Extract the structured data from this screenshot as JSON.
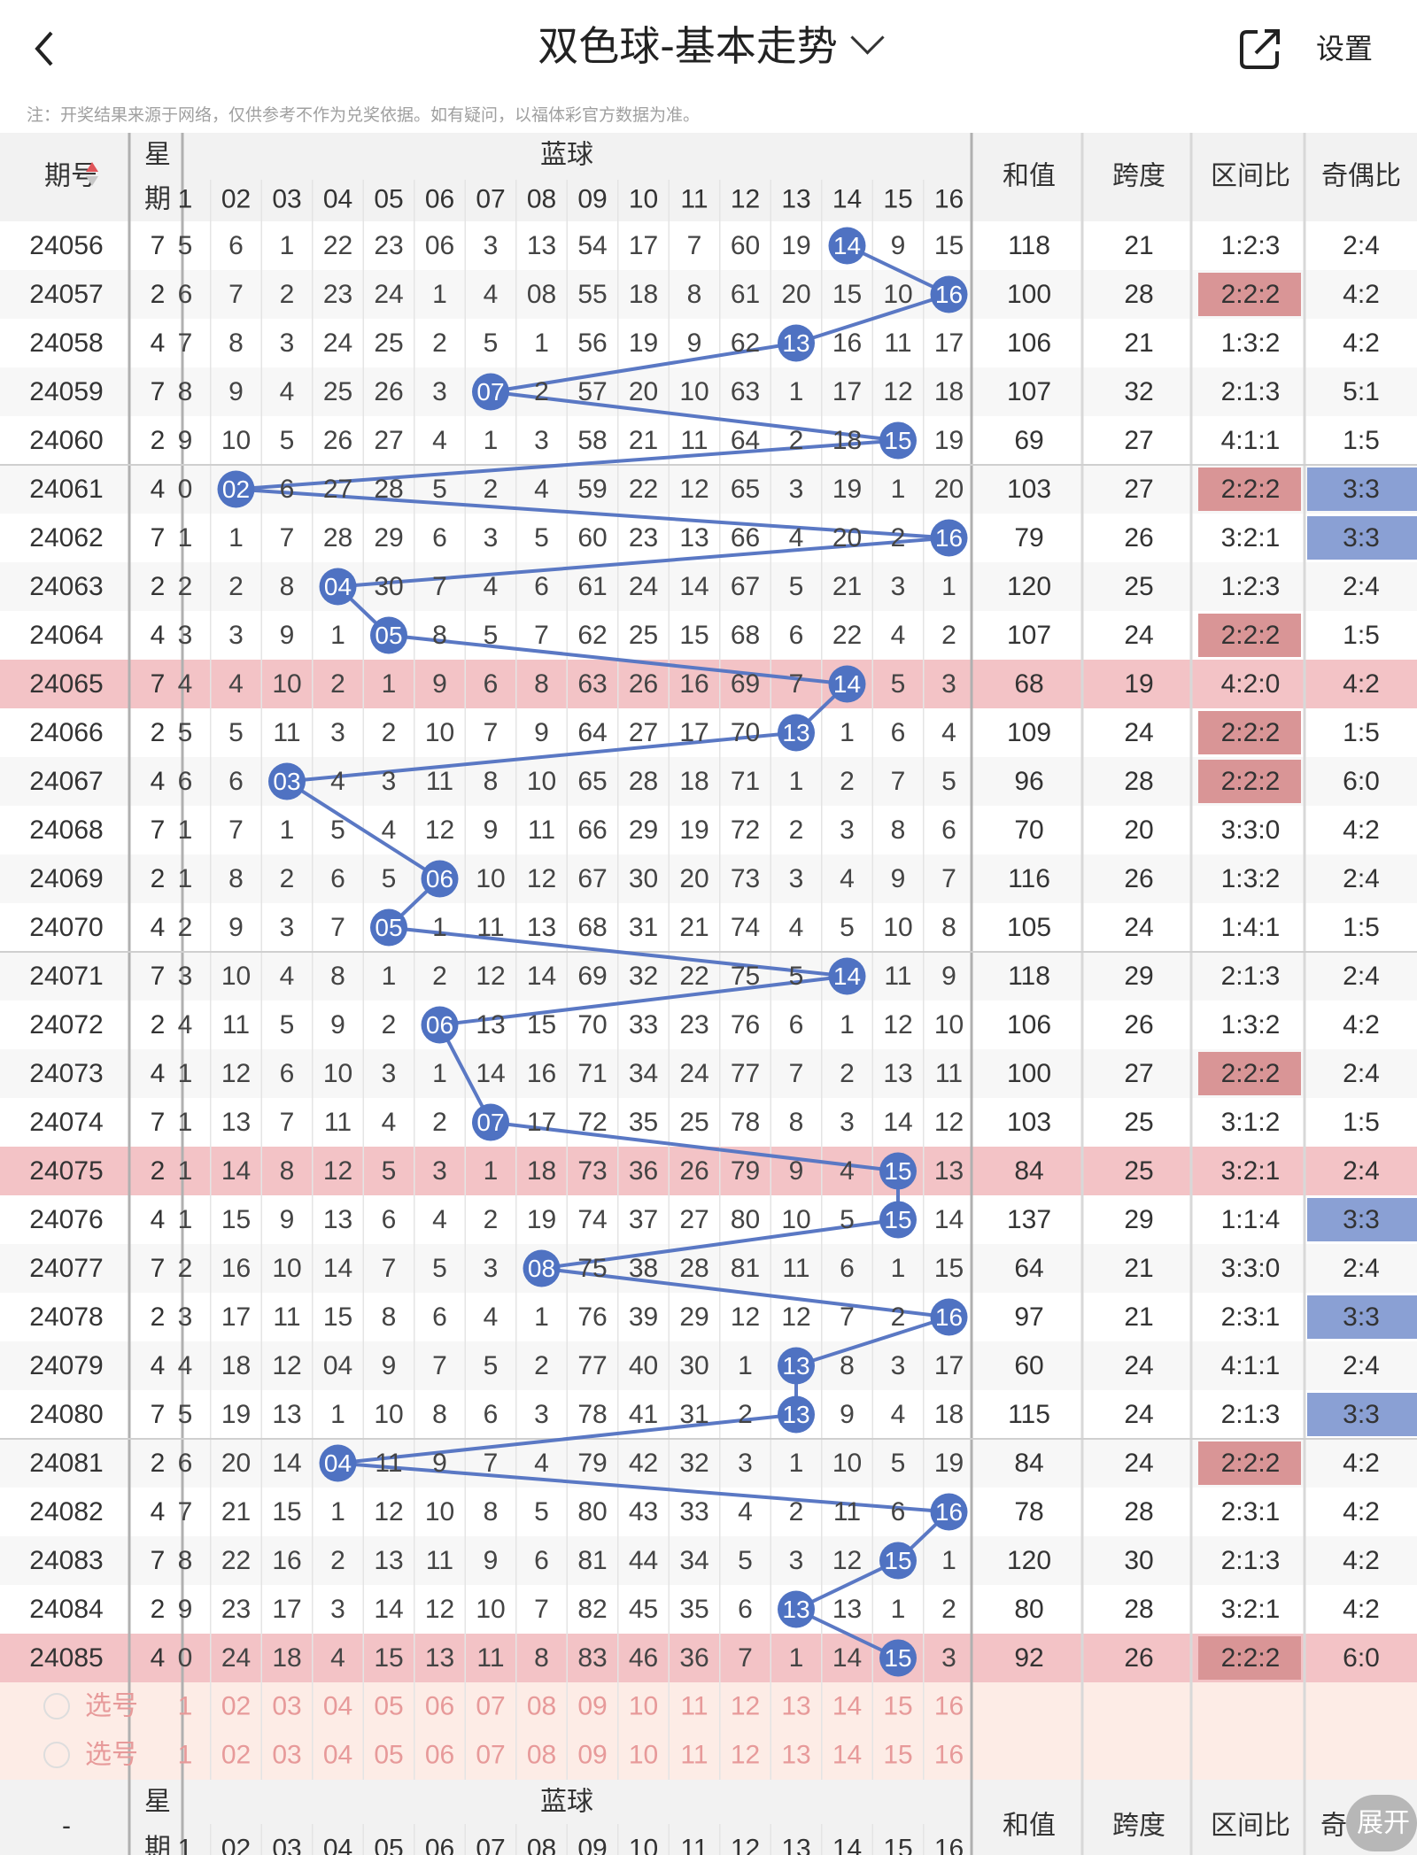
{
  "header": {
    "title": "双色球-基本走势",
    "settings_label": "设置"
  },
  "note": "注：开奖结果来源于网络，仅供参考不作为兑奖依据。如有疑问，以福体彩官方数据为准。",
  "columns": {
    "issue": "期号",
    "week_top": "星",
    "week_bottom": "期",
    "blue_group": "蓝球",
    "sum": "和值",
    "span": "跨度",
    "zone_ratio": "区间比",
    "odd_even": "奇偶比"
  },
  "blue_numbers": [
    "1",
    "02",
    "03",
    "04",
    "05",
    "06",
    "07",
    "08",
    "09",
    "10",
    "11",
    "12",
    "13",
    "14",
    "15",
    "16"
  ],
  "colors": {
    "line": "#5a78c4",
    "ball": "#4f72c2",
    "highlight_row": "#f3c3c6",
    "zone_highlight": "#d99596",
    "oe_highlight": "#8aa0d4",
    "select_text": "#e79a9a",
    "select_bg": "#fdece6",
    "header_bg": "#f2f2f2",
    "alt_row": "#f7f7f7"
  },
  "rows": [
    {
      "issue": "24056",
      "week": "7",
      "cells": [
        "5",
        "6",
        "1",
        "22",
        "23",
        "06",
        "3",
        "13",
        "54",
        "17",
        "7",
        "60",
        "19",
        "14",
        "9",
        "15"
      ],
      "sum": "118",
      "span": "21",
      "zone": "1:2:3",
      "oe": "2:4"
    },
    {
      "issue": "24057",
      "week": "2",
      "cells": [
        "6",
        "7",
        "2",
        "23",
        "24",
        "1",
        "4",
        "08",
        "55",
        "18",
        "8",
        "61",
        "20",
        "15",
        "10",
        "16"
      ],
      "sum": "100",
      "span": "28",
      "zone": "2:2:2",
      "oe": "4:2"
    },
    {
      "issue": "24058",
      "week": "4",
      "cells": [
        "7",
        "8",
        "3",
        "24",
        "25",
        "2",
        "5",
        "1",
        "56",
        "19",
        "9",
        "62",
        "13",
        "16",
        "11",
        "17"
      ],
      "sum": "106",
      "span": "21",
      "zone": "1:3:2",
      "oe": "4:2"
    },
    {
      "issue": "24059",
      "week": "7",
      "cells": [
        "8",
        "9",
        "4",
        "25",
        "26",
        "3",
        "07",
        "2",
        "57",
        "20",
        "10",
        "63",
        "1",
        "17",
        "12",
        "18"
      ],
      "sum": "107",
      "span": "32",
      "zone": "2:1:3",
      "oe": "5:1"
    },
    {
      "issue": "24060",
      "week": "2",
      "cells": [
        "9",
        "10",
        "5",
        "26",
        "27",
        "4",
        "1",
        "3",
        "58",
        "21",
        "11",
        "64",
        "2",
        "18",
        "15",
        "19"
      ],
      "sum": "69",
      "span": "27",
      "zone": "4:1:1",
      "oe": "1:5"
    },
    {
      "issue": "24061",
      "week": "4",
      "cells": [
        "0",
        "02",
        "6",
        "27",
        "28",
        "5",
        "2",
        "4",
        "59",
        "22",
        "12",
        "65",
        "3",
        "19",
        "1",
        "20"
      ],
      "sum": "103",
      "span": "27",
      "zone": "2:2:2",
      "oe": "3:3"
    },
    {
      "issue": "24062",
      "week": "7",
      "cells": [
        "1",
        "1",
        "7",
        "28",
        "29",
        "6",
        "3",
        "5",
        "60",
        "23",
        "13",
        "66",
        "4",
        "20",
        "2",
        "16"
      ],
      "sum": "79",
      "span": "26",
      "zone": "3:2:1",
      "oe": "3:3"
    },
    {
      "issue": "24063",
      "week": "2",
      "cells": [
        "2",
        "2",
        "8",
        "04",
        "30",
        "7",
        "4",
        "6",
        "61",
        "24",
        "14",
        "67",
        "5",
        "21",
        "3",
        "1"
      ],
      "sum": "120",
      "span": "25",
      "zone": "1:2:3",
      "oe": "2:4"
    },
    {
      "issue": "24064",
      "week": "4",
      "cells": [
        "3",
        "3",
        "9",
        "1",
        "05",
        "8",
        "5",
        "7",
        "62",
        "25",
        "15",
        "68",
        "6",
        "22",
        "4",
        "2"
      ],
      "sum": "107",
      "span": "24",
      "zone": "2:2:2",
      "oe": "1:5"
    },
    {
      "issue": "24065",
      "week": "7",
      "cells": [
        "4",
        "4",
        "10",
        "2",
        "1",
        "9",
        "6",
        "8",
        "63",
        "26",
        "16",
        "69",
        "7",
        "14",
        "5",
        "3"
      ],
      "sum": "68",
      "span": "19",
      "zone": "4:2:0",
      "oe": "4:2"
    },
    {
      "issue": "24066",
      "week": "2",
      "cells": [
        "5",
        "5",
        "11",
        "3",
        "2",
        "10",
        "7",
        "9",
        "64",
        "27",
        "17",
        "70",
        "13",
        "1",
        "6",
        "4"
      ],
      "sum": "109",
      "span": "24",
      "zone": "2:2:2",
      "oe": "1:5"
    },
    {
      "issue": "24067",
      "week": "4",
      "cells": [
        "6",
        "6",
        "03",
        "4",
        "3",
        "11",
        "8",
        "10",
        "65",
        "28",
        "18",
        "71",
        "1",
        "2",
        "7",
        "5"
      ],
      "sum": "96",
      "span": "28",
      "zone": "2:2:2",
      "oe": "6:0"
    },
    {
      "issue": "24068",
      "week": "7",
      "cells": [
        "1",
        "7",
        "1",
        "5",
        "4",
        "12",
        "9",
        "11",
        "66",
        "29",
        "19",
        "72",
        "2",
        "3",
        "8",
        "6"
      ],
      "sum": "70",
      "span": "20",
      "zone": "3:3:0",
      "oe": "4:2"
    },
    {
      "issue": "24069",
      "week": "2",
      "cells": [
        "1",
        "8",
        "2",
        "6",
        "5",
        "06",
        "10",
        "12",
        "67",
        "30",
        "20",
        "73",
        "3",
        "4",
        "9",
        "7"
      ],
      "sum": "116",
      "span": "26",
      "zone": "1:3:2",
      "oe": "2:4"
    },
    {
      "issue": "24070",
      "week": "4",
      "cells": [
        "2",
        "9",
        "3",
        "7",
        "05",
        "1",
        "11",
        "13",
        "68",
        "31",
        "21",
        "74",
        "4",
        "5",
        "10",
        "8"
      ],
      "sum": "105",
      "span": "24",
      "zone": "1:4:1",
      "oe": "1:5"
    },
    {
      "issue": "24071",
      "week": "7",
      "cells": [
        "3",
        "10",
        "4",
        "8",
        "1",
        "2",
        "12",
        "14",
        "69",
        "32",
        "22",
        "75",
        "5",
        "14",
        "11",
        "9"
      ],
      "sum": "118",
      "span": "29",
      "zone": "2:1:3",
      "oe": "2:4"
    },
    {
      "issue": "24072",
      "week": "2",
      "cells": [
        "4",
        "11",
        "5",
        "9",
        "2",
        "06",
        "13",
        "15",
        "70",
        "33",
        "23",
        "76",
        "6",
        "1",
        "12",
        "10"
      ],
      "sum": "106",
      "span": "26",
      "zone": "1:3:2",
      "oe": "4:2"
    },
    {
      "issue": "24073",
      "week": "4",
      "cells": [
        "1",
        "12",
        "6",
        "10",
        "3",
        "1",
        "14",
        "16",
        "71",
        "34",
        "24",
        "77",
        "7",
        "2",
        "13",
        "11"
      ],
      "sum": "100",
      "span": "27",
      "zone": "2:2:2",
      "oe": "2:4"
    },
    {
      "issue": "24074",
      "week": "7",
      "cells": [
        "1",
        "13",
        "7",
        "11",
        "4",
        "2",
        "07",
        "17",
        "72",
        "35",
        "25",
        "78",
        "8",
        "3",
        "14",
        "12"
      ],
      "sum": "103",
      "span": "25",
      "zone": "3:1:2",
      "oe": "1:5"
    },
    {
      "issue": "24075",
      "week": "2",
      "cells": [
        "1",
        "14",
        "8",
        "12",
        "5",
        "3",
        "1",
        "18",
        "73",
        "36",
        "26",
        "79",
        "9",
        "4",
        "15",
        "13"
      ],
      "sum": "84",
      "span": "25",
      "zone": "3:2:1",
      "oe": "2:4"
    },
    {
      "issue": "24076",
      "week": "4",
      "cells": [
        "1",
        "15",
        "9",
        "13",
        "6",
        "4",
        "2",
        "19",
        "74",
        "37",
        "27",
        "80",
        "10",
        "5",
        "15",
        "14"
      ],
      "sum": "137",
      "span": "29",
      "zone": "1:1:4",
      "oe": "3:3"
    },
    {
      "issue": "24077",
      "week": "7",
      "cells": [
        "2",
        "16",
        "10",
        "14",
        "7",
        "5",
        "3",
        "08",
        "75",
        "38",
        "28",
        "81",
        "11",
        "6",
        "1",
        "15"
      ],
      "sum": "64",
      "span": "21",
      "zone": "3:3:0",
      "oe": "2:4"
    },
    {
      "issue": "24078",
      "week": "2",
      "cells": [
        "3",
        "17",
        "11",
        "15",
        "8",
        "6",
        "4",
        "1",
        "76",
        "39",
        "29",
        "12",
        "12",
        "7",
        "2",
        "16"
      ],
      "sum": "97",
      "span": "21",
      "zone": "2:3:1",
      "oe": "3:3"
    },
    {
      "issue": "24079",
      "week": "4",
      "cells": [
        "4",
        "18",
        "12",
        "04",
        "9",
        "7",
        "5",
        "2",
        "77",
        "40",
        "30",
        "1",
        "13",
        "8",
        "3",
        "17"
      ],
      "sum": "60",
      "span": "24",
      "zone": "4:1:1",
      "oe": "2:4"
    },
    {
      "issue": "24080",
      "week": "7",
      "cells": [
        "5",
        "19",
        "13",
        "1",
        "10",
        "8",
        "6",
        "3",
        "78",
        "41",
        "31",
        "2",
        "13",
        "9",
        "4",
        "18"
      ],
      "sum": "115",
      "span": "24",
      "zone": "2:1:3",
      "oe": "3:3"
    },
    {
      "issue": "24081",
      "week": "2",
      "cells": [
        "6",
        "20",
        "14",
        "04",
        "11",
        "9",
        "7",
        "4",
        "79",
        "42",
        "32",
        "3",
        "1",
        "10",
        "5",
        "19"
      ],
      "sum": "84",
      "span": "24",
      "zone": "2:2:2",
      "oe": "4:2"
    },
    {
      "issue": "24082",
      "week": "4",
      "cells": [
        "7",
        "21",
        "15",
        "1",
        "12",
        "10",
        "8",
        "5",
        "80",
        "43",
        "33",
        "4",
        "2",
        "11",
        "6",
        "16"
      ],
      "sum": "78",
      "span": "28",
      "zone": "2:3:1",
      "oe": "4:2"
    },
    {
      "issue": "24083",
      "week": "7",
      "cells": [
        "8",
        "22",
        "16",
        "2",
        "13",
        "11",
        "9",
        "6",
        "81",
        "44",
        "34",
        "5",
        "3",
        "12",
        "15",
        "1"
      ],
      "sum": "120",
      "span": "30",
      "zone": "2:1:3",
      "oe": "4:2"
    },
    {
      "issue": "24084",
      "week": "2",
      "cells": [
        "9",
        "23",
        "17",
        "3",
        "14",
        "12",
        "10",
        "7",
        "82",
        "45",
        "35",
        "6",
        "13",
        "13",
        "1",
        "2"
      ],
      "sum": "80",
      "span": "28",
      "zone": "3:2:1",
      "oe": "4:2"
    },
    {
      "issue": "24085",
      "week": "4",
      "cells": [
        "0",
        "24",
        "18",
        "4",
        "15",
        "13",
        "11",
        "8",
        "83",
        "46",
        "36",
        "7",
        "1",
        "14",
        "15",
        "3"
      ],
      "sum": "92",
      "span": "26",
      "zone": "2:2:2",
      "oe": "6:0"
    }
  ],
  "select_label": "选号",
  "footer": {
    "issue": "-",
    "expand_label": "展开",
    "odd_even_short": "奇"
  }
}
